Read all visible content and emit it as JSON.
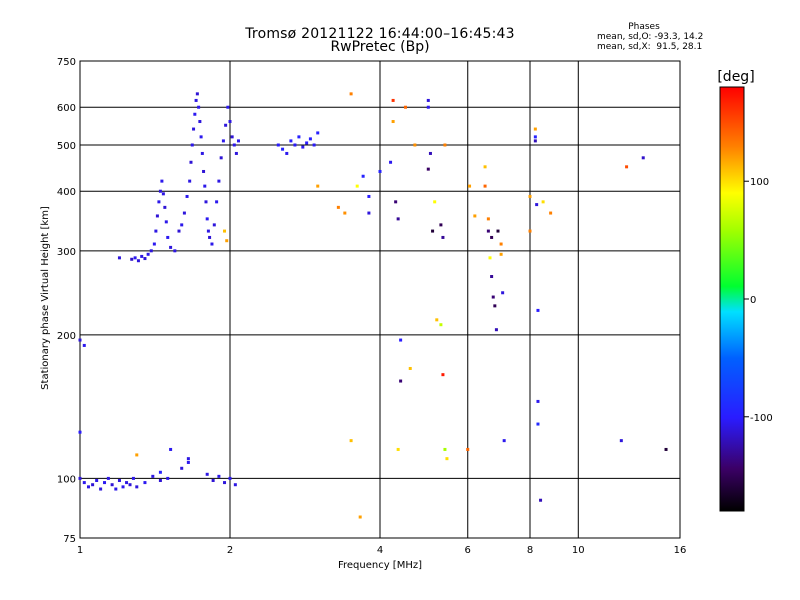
{
  "header": {
    "title": "Tromsø 20121122 16:44:00–16:45:43",
    "subtitle": "RwPretec (Bp)"
  },
  "phases": {
    "heading": "Phases",
    "line_o": "mean, sd,O: -93.3, 14.2",
    "line_x": "mean, sd,X:  91.5, 28.1"
  },
  "colorbar": {
    "label": "[deg]",
    "ticks": [
      {
        "value": 100,
        "label": "100"
      },
      {
        "value": 0,
        "label": "0"
      },
      {
        "value": -100,
        "label": "-100"
      }
    ],
    "range": [
      -180,
      180
    ]
  },
  "chart_data": {
    "type": "scatter",
    "title": "Tromsø 20121122 16:44:00–16:45:43",
    "subtitle": "RwPretec (Bp)",
    "xlabel": "Frequency [MHz]",
    "ylabel": "Stationary phase Virtual Height [km]",
    "xscale": "log",
    "yscale": "log",
    "xlim": [
      1,
      16
    ],
    "ylim": [
      75,
      750
    ],
    "xticks": [
      {
        "v": 1,
        "label": "1"
      },
      {
        "v": 2,
        "label": "2"
      },
      {
        "v": 4,
        "label": "4"
      },
      {
        "v": 6,
        "label": "6"
      },
      {
        "v": 8,
        "label": "8"
      },
      {
        "v": 10,
        "label": "10"
      },
      {
        "v": 16,
        "label": "16"
      }
    ],
    "yticks": [
      {
        "v": 75,
        "label": "75"
      },
      {
        "v": 100,
        "label": "100"
      },
      {
        "v": 200,
        "label": "200"
      },
      {
        "v": 300,
        "label": "300"
      },
      {
        "v": 400,
        "label": "400"
      },
      {
        "v": 500,
        "label": "500"
      },
      {
        "v": 600,
        "label": "600"
      },
      {
        "v": 750,
        "label": "750"
      }
    ],
    "grid": true,
    "color_by": "phase [deg]",
    "points": [
      [
        1.27,
        288,
        -115
      ],
      [
        1.29,
        290,
        -105
      ],
      [
        1.31,
        286,
        -110
      ],
      [
        1.33,
        292,
        -108
      ],
      [
        1.35,
        289,
        -112
      ],
      [
        1.37,
        295,
        -106
      ],
      [
        1.39,
        300,
        -110
      ],
      [
        1.41,
        310,
        -104
      ],
      [
        1.42,
        330,
        -108
      ],
      [
        1.43,
        355,
        -112
      ],
      [
        1.44,
        380,
        -106
      ],
      [
        1.45,
        400,
        -110
      ],
      [
        1.46,
        420,
        -105
      ],
      [
        1.47,
        395,
        -108
      ],
      [
        1.48,
        370,
        -112
      ],
      [
        1.49,
        345,
        -106
      ],
      [
        1.5,
        320,
        -104
      ],
      [
        1.52,
        305,
        -110
      ],
      [
        1.55,
        300,
        -108
      ],
      [
        1.58,
        330,
        -112
      ],
      [
        1.6,
        340,
        -106
      ],
      [
        1.62,
        360,
        -110
      ],
      [
        1.64,
        390,
        -105
      ],
      [
        1.66,
        420,
        -108
      ],
      [
        1.67,
        460,
        -112
      ],
      [
        1.68,
        500,
        -106
      ],
      [
        1.69,
        540,
        -110
      ],
      [
        1.7,
        580,
        -104
      ],
      [
        1.71,
        620,
        -108
      ],
      [
        1.72,
        640,
        -112
      ],
      [
        1.73,
        600,
        -106
      ],
      [
        1.74,
        560,
        -110
      ],
      [
        1.75,
        520,
        -105
      ],
      [
        1.76,
        480,
        -108
      ],
      [
        1.77,
        440,
        -112
      ],
      [
        1.78,
        410,
        -106
      ],
      [
        1.79,
        380,
        -110
      ],
      [
        1.8,
        350,
        -104
      ],
      [
        1.81,
        330,
        -108
      ],
      [
        1.82,
        320,
        -112
      ],
      [
        1.84,
        310,
        -106
      ],
      [
        1.86,
        340,
        -110
      ],
      [
        1.88,
        380,
        -105
      ],
      [
        1.9,
        420,
        -108
      ],
      [
        1.92,
        470,
        -112
      ],
      [
        1.94,
        510,
        -106
      ],
      [
        1.96,
        550,
        -110
      ],
      [
        1.98,
        600,
        -104
      ],
      [
        2.0,
        560,
        -108
      ],
      [
        2.02,
        520,
        -112
      ],
      [
        2.04,
        500,
        -106
      ],
      [
        2.06,
        480,
        -110
      ],
      [
        2.08,
        510,
        -105
      ],
      [
        1.95,
        330,
        110
      ],
      [
        1.97,
        315,
        120
      ],
      [
        2.5,
        500,
        -100
      ],
      [
        2.55,
        490,
        -95
      ],
      [
        2.6,
        480,
        -105
      ],
      [
        2.65,
        510,
        -98
      ],
      [
        2.7,
        500,
        -102
      ],
      [
        2.75,
        520,
        -96
      ],
      [
        2.8,
        495,
        -104
      ],
      [
        2.85,
        505,
        -100
      ],
      [
        2.9,
        515,
        -98
      ],
      [
        2.95,
        500,
        -102
      ],
      [
        3.0,
        530,
        -96
      ],
      [
        1.0,
        100,
        -110
      ],
      [
        1.02,
        98,
        -105
      ],
      [
        1.04,
        96,
        -108
      ],
      [
        1.06,
        97,
        -112
      ],
      [
        1.08,
        99,
        -106
      ],
      [
        1.1,
        95,
        -110
      ],
      [
        1.12,
        98,
        -104
      ],
      [
        1.14,
        100,
        -108
      ],
      [
        1.16,
        97,
        -112
      ],
      [
        1.18,
        95,
        -106
      ],
      [
        1.2,
        99,
        -110
      ],
      [
        1.22,
        96,
        -105
      ],
      [
        1.24,
        98,
        -108
      ],
      [
        1.26,
        97,
        -112
      ],
      [
        1.28,
        100,
        -106
      ],
      [
        1.3,
        96,
        -110
      ],
      [
        1.35,
        98,
        -104
      ],
      [
        1.4,
        101,
        -108
      ],
      [
        1.45,
        99,
        -112
      ],
      [
        1.5,
        100,
        -106
      ],
      [
        1.6,
        105,
        -110
      ],
      [
        1.65,
        108,
        -105
      ],
      [
        1.8,
        102,
        -108
      ],
      [
        1.85,
        99,
        -112
      ],
      [
        1.9,
        101,
        -106
      ],
      [
        1.95,
        98,
        -110
      ],
      [
        2.0,
        100,
        -104
      ],
      [
        2.05,
        97,
        -108
      ],
      [
        1.0,
        125,
        -100
      ],
      [
        1.0,
        195,
        -110
      ],
      [
        1.02,
        190,
        -105
      ],
      [
        1.2,
        290,
        -110
      ],
      [
        1.3,
        112,
        120
      ],
      [
        1.45,
        103,
        -95
      ],
      [
        1.52,
        115,
        -105
      ],
      [
        1.65,
        110,
        -108
      ],
      [
        3.0,
        410,
        120
      ],
      [
        3.3,
        370,
        130
      ],
      [
        3.4,
        360,
        125
      ],
      [
        3.5,
        640,
        130
      ],
      [
        3.5,
        120,
        110
      ],
      [
        3.6,
        410,
        90
      ],
      [
        3.65,
        83,
        120
      ],
      [
        3.7,
        430,
        -95
      ],
      [
        3.8,
        360,
        -110
      ],
      [
        3.8,
        390,
        -100
      ],
      [
        4.0,
        440,
        -95
      ],
      [
        4.2,
        460,
        -105
      ],
      [
        4.25,
        620,
        160
      ],
      [
        4.25,
        560,
        120
      ],
      [
        4.3,
        380,
        -140
      ],
      [
        4.35,
        350,
        -130
      ],
      [
        4.4,
        160,
        -140
      ],
      [
        4.35,
        115,
        100
      ],
      [
        4.4,
        195,
        -100
      ],
      [
        4.5,
        600,
        140
      ],
      [
        4.6,
        170,
        110
      ],
      [
        4.7,
        500,
        125
      ],
      [
        5.0,
        620,
        -110
      ],
      [
        5.0,
        600,
        -105
      ],
      [
        5.0,
        445,
        -145
      ],
      [
        5.05,
        480,
        -120
      ],
      [
        5.1,
        330,
        -160
      ],
      [
        5.15,
        380,
        90
      ],
      [
        5.2,
        215,
        110
      ],
      [
        5.3,
        210,
        70
      ],
      [
        5.3,
        340,
        -150
      ],
      [
        5.35,
        320,
        -130
      ],
      [
        5.35,
        165,
        170
      ],
      [
        5.4,
        500,
        130
      ],
      [
        5.4,
        115,
        60
      ],
      [
        5.45,
        110,
        100
      ],
      [
        6.0,
        115,
        140
      ],
      [
        6.05,
        410,
        120
      ],
      [
        6.2,
        355,
        120
      ],
      [
        6.5,
        450,
        110
      ],
      [
        6.5,
        410,
        140
      ],
      [
        6.6,
        350,
        130
      ],
      [
        6.6,
        330,
        -140
      ],
      [
        6.7,
        320,
        -150
      ],
      [
        6.65,
        290,
        90
      ],
      [
        6.7,
        265,
        -130
      ],
      [
        6.75,
        240,
        -140
      ],
      [
        6.8,
        230,
        -150
      ],
      [
        6.85,
        205,
        -120
      ],
      [
        6.9,
        330,
        -160
      ],
      [
        7.0,
        310,
        130
      ],
      [
        7.0,
        295,
        120
      ],
      [
        7.05,
        245,
        -110
      ],
      [
        7.1,
        120,
        -105
      ],
      [
        8.0,
        390,
        120
      ],
      [
        8.0,
        330,
        130
      ],
      [
        8.2,
        540,
        120
      ],
      [
        8.2,
        520,
        -95
      ],
      [
        8.2,
        510,
        -120
      ],
      [
        8.25,
        375,
        -110
      ],
      [
        8.3,
        225,
        -100
      ],
      [
        8.3,
        145,
        -105
      ],
      [
        8.3,
        130,
        -90
      ],
      [
        8.4,
        90,
        -120
      ],
      [
        8.5,
        380,
        100
      ],
      [
        8.8,
        360,
        130
      ],
      [
        12.5,
        450,
        150
      ],
      [
        12.2,
        120,
        -110
      ],
      [
        13.5,
        470,
        -115
      ],
      [
        15.0,
        115,
        -160
      ]
    ]
  }
}
